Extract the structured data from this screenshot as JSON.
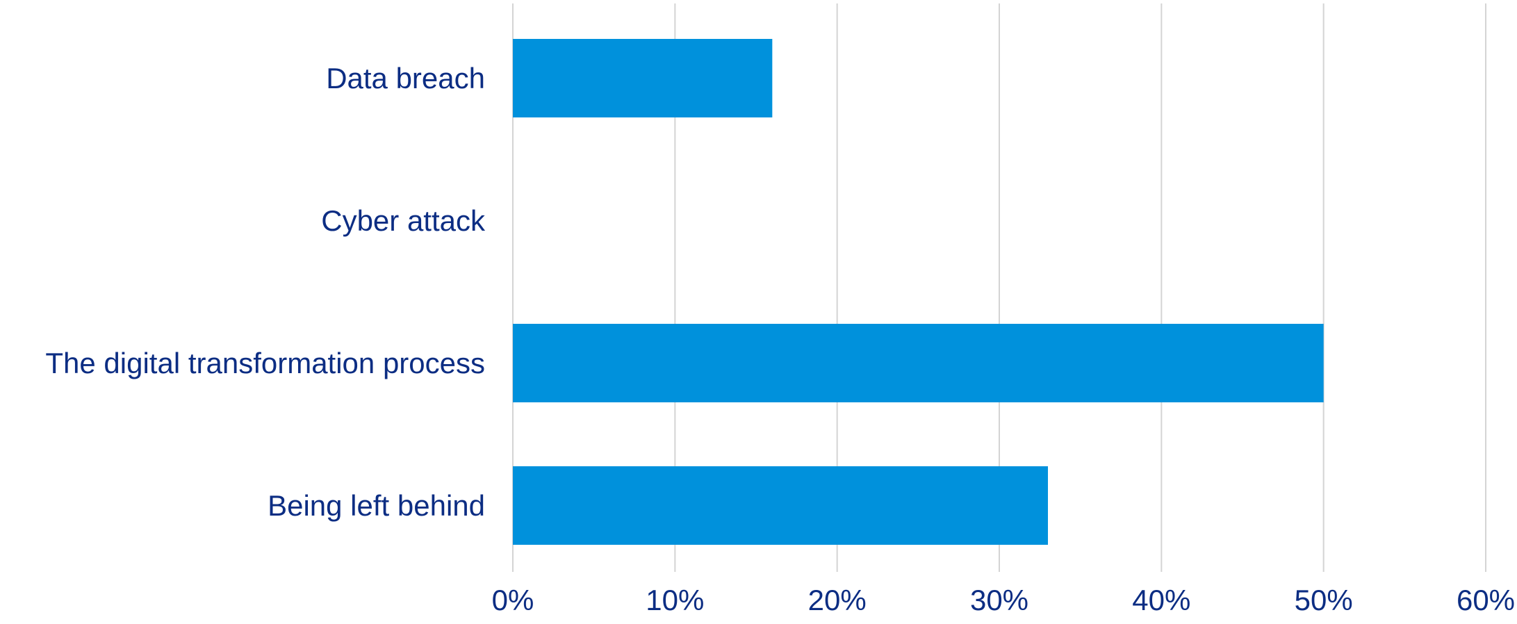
{
  "chart_data": {
    "type": "bar",
    "orientation": "horizontal",
    "categories": [
      "Data breach",
      "Cyber attack",
      "The digital transformation process",
      "Being left behind"
    ],
    "values": [
      16,
      0,
      50,
      33
    ],
    "xlim": [
      0,
      60
    ],
    "x_ticks": [
      0,
      10,
      20,
      30,
      40,
      50,
      60
    ],
    "tick_labels": [
      "0%",
      "10%",
      "20%",
      "30%",
      "40%",
      "50%",
      "60%"
    ],
    "grid": true,
    "legend": "none",
    "bar_color": "#0091dc",
    "label_color": "#0c2d83",
    "grid_color": "#d4d4d4"
  }
}
